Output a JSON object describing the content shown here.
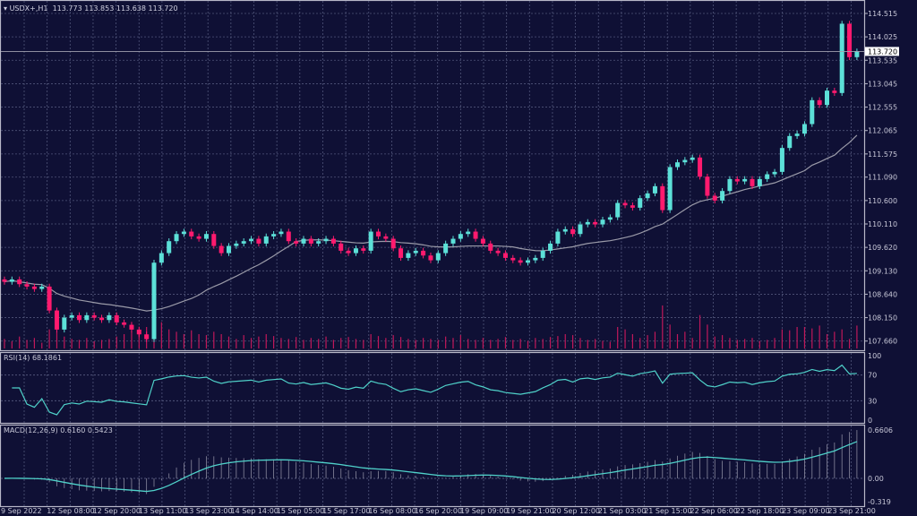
{
  "header": {
    "symbol": "USDX+,H1",
    "open": "113.773",
    "high": "113.853",
    "low": "113.638",
    "close": "113.720"
  },
  "colors": {
    "background": "#0f1035",
    "bull": "#5ce0d8",
    "bear": "#ff1a6e",
    "volume": "#c0185a",
    "ma": "#9a9aa8",
    "rsi": "#4fd1c9",
    "macd_hist": "#a8a8b8",
    "macd_signal": "#4fd1c9",
    "grid": "#50557a",
    "frame": "#b8b8c8"
  },
  "chart_data": [
    {
      "type": "candlestick",
      "title": "USDX+,H1",
      "ylim": [
        107.5,
        114.6
      ],
      "price_ticks": [
        "114.515",
        "114.025",
        "113.535",
        "113.045",
        "112.555",
        "112.065",
        "111.575",
        "111.090",
        "110.600",
        "110.110",
        "109.620",
        "109.130",
        "108.640",
        "108.150",
        "107.660"
      ],
      "current_price": "113.720",
      "x_tick_labels": [
        "9 Sep 2022",
        "12 Sep 08:00",
        "12 Sep 20:00",
        "13 Sep 11:00",
        "13 Sep 23:00",
        "14 Sep 14:00",
        "15 Sep 05:00",
        "15 Sep 17:00",
        "16 Sep 08:00",
        "16 Sep 20:00",
        "19 Sep 09:00",
        "19 Sep 21:00",
        "20 Sep 12:00",
        "21 Sep 03:00",
        "21 Sep 15:00",
        "22 Sep 06:00",
        "22 Sep 18:00",
        "23 Sep 09:00",
        "23 Sep 21:00"
      ],
      "closes": [
        108.9,
        108.95,
        108.85,
        108.8,
        108.75,
        108.8,
        108.3,
        107.9,
        108.15,
        108.2,
        108.1,
        108.2,
        108.15,
        108.1,
        108.2,
        108.05,
        108.0,
        107.9,
        107.8,
        107.7,
        109.3,
        109.5,
        109.75,
        109.9,
        109.95,
        109.85,
        109.8,
        109.9,
        109.65,
        109.5,
        109.65,
        109.7,
        109.75,
        109.8,
        109.7,
        109.85,
        109.9,
        109.95,
        109.75,
        109.7,
        109.8,
        109.7,
        109.75,
        109.8,
        109.7,
        109.55,
        109.5,
        109.6,
        109.55,
        109.95,
        109.85,
        109.8,
        109.6,
        109.4,
        109.5,
        109.55,
        109.45,
        109.35,
        109.5,
        109.7,
        109.8,
        109.9,
        109.95,
        109.8,
        109.7,
        109.55,
        109.5,
        109.4,
        109.35,
        109.3,
        109.35,
        109.4,
        109.55,
        109.7,
        109.95,
        110.0,
        109.9,
        110.1,
        110.15,
        110.1,
        110.2,
        110.25,
        110.55,
        110.5,
        110.45,
        110.65,
        110.75,
        110.9,
        110.4,
        111.3,
        111.4,
        111.45,
        111.5,
        111.1,
        110.7,
        110.6,
        110.8,
        111.05,
        111.0,
        111.05,
        110.9,
        111.05,
        111.15,
        111.2,
        111.7,
        111.95,
        112.0,
        112.2,
        112.7,
        112.6,
        112.9,
        112.85,
        114.3,
        113.6,
        113.72
      ],
      "volume": [
        20,
        15,
        25,
        18,
        22,
        12,
        40,
        35,
        25,
        20,
        18,
        22,
        15,
        18,
        20,
        25,
        30,
        35,
        40,
        45,
        80,
        55,
        40,
        35,
        30,
        38,
        30,
        28,
        35,
        30,
        25,
        20,
        28,
        22,
        25,
        30,
        26,
        22,
        20,
        24,
        18,
        22,
        20,
        25,
        18,
        22,
        24,
        20,
        18,
        30,
        26,
        22,
        28,
        24,
        20,
        18,
        22,
        20,
        18,
        25,
        22,
        28,
        20,
        18,
        22,
        18,
        20,
        24,
        18,
        20,
        16,
        22,
        20,
        24,
        26,
        30,
        28,
        22,
        18,
        20,
        16,
        14,
        45,
        40,
        30,
        22,
        28,
        35,
        90,
        50,
        30,
        35,
        22,
        70,
        50,
        25,
        28,
        22,
        18,
        20,
        22,
        16,
        18,
        22,
        40,
        38,
        45,
        45,
        42,
        48,
        30,
        35,
        40,
        20,
        48
      ]
    },
    {
      "type": "line",
      "title": "RSI(14) 68.1861",
      "label": "RSI(14)",
      "value": "68.1861",
      "ylim": [
        0,
        100
      ],
      "ticks": [
        "100",
        "70",
        "30",
        "0"
      ]
    },
    {
      "type": "bar+line",
      "title": "MACD(12,26,9) 0.6160 0.5423",
      "label": "MACD(12,26,9)",
      "main": "0.6160",
      "signal": "0.5423",
      "ylim": [
        -0.319,
        0.6606
      ],
      "ticks": [
        "0.6606",
        "0.00",
        "-0.319"
      ]
    }
  ]
}
